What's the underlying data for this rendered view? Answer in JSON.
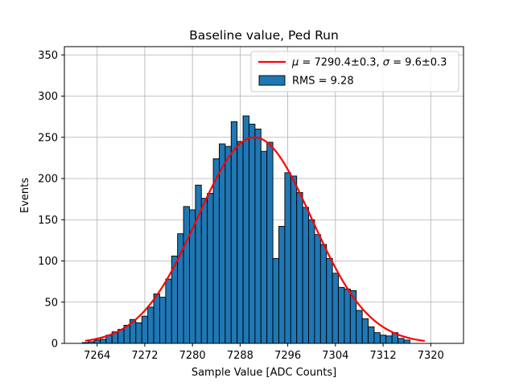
{
  "chart_data": {
    "type": "bar",
    "title": "Baseline value, Ped Run",
    "xlabel": "Sample Value [ADC Counts]",
    "ylabel": "Events",
    "xlim": [
      7258.5,
      7325.5
    ],
    "ylim": [
      0,
      360
    ],
    "xticks": [
      7264,
      7272,
      7280,
      7288,
      7296,
      7304,
      7312,
      7320
    ],
    "yticks": [
      0,
      50,
      100,
      150,
      200,
      250,
      300,
      350
    ],
    "grid": true,
    "legend_position": "top-right",
    "bin_width": 1,
    "bins": [
      {
        "x": 7262,
        "y": 1
      },
      {
        "x": 7263,
        "y": 2
      },
      {
        "x": 7264,
        "y": 4
      },
      {
        "x": 7265,
        "y": 5
      },
      {
        "x": 7266,
        "y": 10
      },
      {
        "x": 7267,
        "y": 14
      },
      {
        "x": 7268,
        "y": 17
      },
      {
        "x": 7269,
        "y": 22
      },
      {
        "x": 7270,
        "y": 29
      },
      {
        "x": 7271,
        "y": 25
      },
      {
        "x": 7272,
        "y": 33
      },
      {
        "x": 7273,
        "y": 44
      },
      {
        "x": 7274,
        "y": 60
      },
      {
        "x": 7275,
        "y": 56
      },
      {
        "x": 7276,
        "y": 78
      },
      {
        "x": 7277,
        "y": 106
      },
      {
        "x": 7278,
        "y": 133
      },
      {
        "x": 7279,
        "y": 166
      },
      {
        "x": 7280,
        "y": 162
      },
      {
        "x": 7281,
        "y": 192
      },
      {
        "x": 7282,
        "y": 176
      },
      {
        "x": 7283,
        "y": 182
      },
      {
        "x": 7284,
        "y": 224
      },
      {
        "x": 7285,
        "y": 242
      },
      {
        "x": 7286,
        "y": 239
      },
      {
        "x": 7287,
        "y": 269
      },
      {
        "x": 7288,
        "y": 245
      },
      {
        "x": 7289,
        "y": 276
      },
      {
        "x": 7290,
        "y": 266
      },
      {
        "x": 7291,
        "y": 260
      },
      {
        "x": 7292,
        "y": 233
      },
      {
        "x": 7293,
        "y": 244
      },
      {
        "x": 7294,
        "y": 103
      },
      {
        "x": 7295,
        "y": 142
      },
      {
        "x": 7296,
        "y": 207
      },
      {
        "x": 7297,
        "y": 203
      },
      {
        "x": 7298,
        "y": 183
      },
      {
        "x": 7299,
        "y": 165
      },
      {
        "x": 7300,
        "y": 150
      },
      {
        "x": 7301,
        "y": 132
      },
      {
        "x": 7302,
        "y": 120
      },
      {
        "x": 7303,
        "y": 103
      },
      {
        "x": 7304,
        "y": 85
      },
      {
        "x": 7305,
        "y": 68
      },
      {
        "x": 7306,
        "y": 66
      },
      {
        "x": 7307,
        "y": 64
      },
      {
        "x": 7308,
        "y": 40
      },
      {
        "x": 7309,
        "y": 30
      },
      {
        "x": 7310,
        "y": 20
      },
      {
        "x": 7311,
        "y": 13
      },
      {
        "x": 7312,
        "y": 10
      },
      {
        "x": 7313,
        "y": 9
      },
      {
        "x": 7314,
        "y": 13
      },
      {
        "x": 7315,
        "y": 6
      },
      {
        "x": 7316,
        "y": 4
      }
    ],
    "fit": {
      "type": "gaussian",
      "mu": 7290.4,
      "sigma": 9.6,
      "amplitude": 250,
      "x_range": [
        7262,
        7319
      ]
    },
    "legend": [
      {
        "label_html": "<tspan font-style='italic'>μ</tspan> = 7290.4±0.3, <tspan font-style='italic'>σ</tspan> = 9.6±0.3",
        "type": "line",
        "color": "#ff0000"
      },
      {
        "label": "RMS = 9.28",
        "type": "patch",
        "color": "#1f77b4"
      }
    ],
    "colors": {
      "bar_fill": "#1f77b4",
      "bar_edge": "#000000",
      "fit_line": "#ff0000",
      "grid": "#b0b0b0"
    }
  }
}
